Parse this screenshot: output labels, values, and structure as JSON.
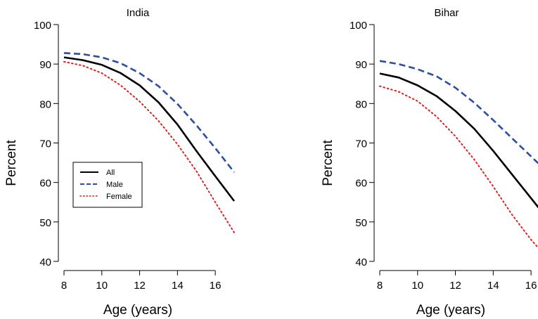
{
  "chart_data": [
    {
      "type": "line",
      "title": "India",
      "xlabel": "Age (years)",
      "ylabel": "Percent",
      "xlim": [
        8,
        17
      ],
      "ylim": [
        40,
        100
      ],
      "xticks": [
        8,
        10,
        12,
        14,
        16
      ],
      "yticks": [
        40,
        50,
        60,
        70,
        80,
        90,
        100
      ],
      "x": [
        8,
        9,
        10,
        11,
        12,
        13,
        14,
        15,
        16,
        17
      ],
      "legend": {
        "position": "center-left"
      },
      "series": [
        {
          "name": "All",
          "style": "solid",
          "color": "#000000",
          "values": [
            91.7,
            91.0,
            89.8,
            87.7,
            84.6,
            80.3,
            74.7,
            68.0,
            61.6,
            55.3
          ]
        },
        {
          "name": "Male",
          "style": "dashed",
          "color": "#2b4ea2",
          "values": [
            92.8,
            92.5,
            91.7,
            90.2,
            87.7,
            84.4,
            79.9,
            74.5,
            68.7,
            62.6
          ]
        },
        {
          "name": "Female",
          "style": "dotted",
          "color": "#e41a1c",
          "values": [
            90.6,
            89.6,
            87.7,
            84.6,
            80.5,
            75.6,
            69.7,
            62.9,
            55.0,
            47.3
          ]
        }
      ]
    },
    {
      "type": "line",
      "title": "Bihar",
      "xlabel": "Age (years)",
      "ylabel": "Percent",
      "xlim": [
        8,
        16.5
      ],
      "ylim": [
        40,
        100
      ],
      "xticks": [
        8,
        10,
        12,
        14,
        16
      ],
      "yticks": [
        40,
        50,
        60,
        70,
        80,
        90,
        100
      ],
      "x": [
        8,
        9,
        10,
        11,
        12,
        13,
        14,
        15,
        16,
        16.5
      ],
      "series": [
        {
          "name": "All",
          "style": "solid",
          "color": "#000000",
          "values": [
            87.6,
            86.6,
            84.6,
            81.9,
            78.1,
            73.6,
            68.0,
            62.0,
            56.0,
            53.0
          ]
        },
        {
          "name": "Male",
          "style": "dashed",
          "color": "#2b4ea2",
          "values": [
            90.8,
            90.0,
            88.7,
            86.9,
            84.0,
            80.2,
            75.8,
            71.2,
            66.6,
            64.3
          ]
        },
        {
          "name": "Female",
          "style": "dotted",
          "color": "#e41a1c",
          "values": [
            84.4,
            83.0,
            80.6,
            76.7,
            71.7,
            65.8,
            59.0,
            51.8,
            45.5,
            42.8
          ]
        }
      ]
    }
  ]
}
